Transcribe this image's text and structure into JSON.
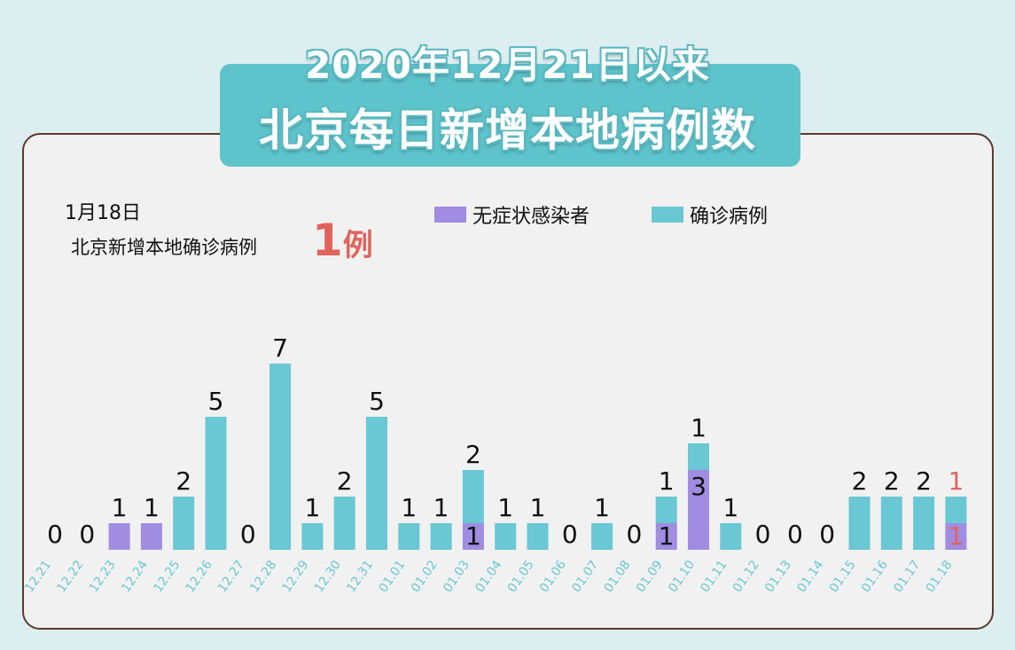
{
  "title": {
    "line1": "2020年12月21日以来",
    "line2": "北京每日新增本地病例数"
  },
  "note": {
    "date": "1月18日",
    "text": "北京新增本地确诊病例",
    "count": "1",
    "unit": "例"
  },
  "colors": {
    "asymptomatic": "#a08ce0",
    "confirmed": "#69c8d3",
    "highlight": "#e0645c",
    "tick": "#69c8d3"
  },
  "chart_data": {
    "type": "bar",
    "stacked": true,
    "legend": [
      "无症状感染者",
      "确诊病例"
    ],
    "legend_position": "top",
    "categories": [
      "12.21",
      "12.22",
      "12.23",
      "12.24",
      "12.25",
      "12.26",
      "12.27",
      "12.28",
      "12.29",
      "12.30",
      "12.31",
      "01.01",
      "01.02",
      "01.03",
      "01.04",
      "01.05",
      "01.06",
      "01.07",
      "01.08",
      "01.09",
      "01.10",
      "01.11",
      "01.12",
      "01.13",
      "01.14",
      "01.15",
      "01.16",
      "01.17",
      "01.18"
    ],
    "series": [
      {
        "name": "无症状感染者",
        "values": [
          0,
          0,
          1,
          1,
          0,
          0,
          0,
          0,
          0,
          0,
          0,
          0,
          0,
          1,
          0,
          0,
          0,
          0,
          0,
          1,
          3,
          0,
          0,
          0,
          0,
          0,
          0,
          0,
          1
        ]
      },
      {
        "name": "确诊病例",
        "values": [
          0,
          0,
          0,
          0,
          2,
          5,
          0,
          7,
          1,
          2,
          5,
          1,
          1,
          2,
          1,
          1,
          0,
          1,
          0,
          1,
          1,
          1,
          0,
          0,
          0,
          2,
          2,
          2,
          1
        ]
      }
    ],
    "labels": [
      {
        "segment": "top",
        "values": [
          "0",
          "0",
          "1",
          "1",
          "2",
          "5",
          "0",
          "7",
          "1",
          "2",
          "5",
          "1",
          "1",
          "2",
          "1",
          "1",
          "0",
          "1",
          "0",
          "1",
          "1",
          "1",
          "0",
          "0",
          "0",
          "2",
          "2",
          "2",
          "1"
        ]
      },
      {
        "segment": "inner",
        "values": [
          "",
          "",
          "",
          "",
          "",
          "",
          "",
          "",
          "",
          "",
          "",
          "",
          "",
          "1",
          "",
          "",
          "",
          "",
          "",
          "1",
          "3",
          "",
          "",
          "",
          "",
          "",
          "",
          "",
          "1"
        ]
      }
    ],
    "highlight_category": "01.18",
    "grid": false
  }
}
